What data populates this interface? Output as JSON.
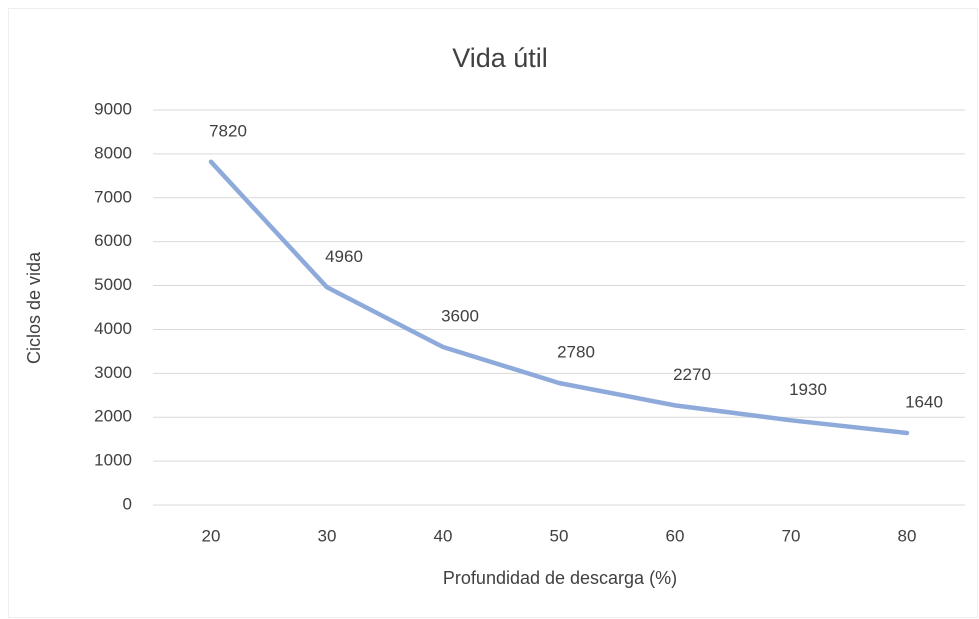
{
  "chart_data": {
    "type": "line",
    "title": "Vida útil",
    "x_label": "Profundidad de descarga (%)",
    "y_label": "Ciclos de vida",
    "categories": [
      "20",
      "30",
      "40",
      "50",
      "60",
      "70",
      "80"
    ],
    "series": [
      {
        "name": "Ciclos de vida",
        "color": "#8eaadb",
        "values": [
          7820,
          4960,
          3600,
          2780,
          2270,
          1930,
          1640
        ]
      }
    ],
    "ylim": [
      0,
      9000
    ],
    "yticks": [
      0,
      1000,
      2000,
      3000,
      4000,
      5000,
      6000,
      7000,
      8000,
      9000
    ],
    "grid": true,
    "data_labels": true
  }
}
